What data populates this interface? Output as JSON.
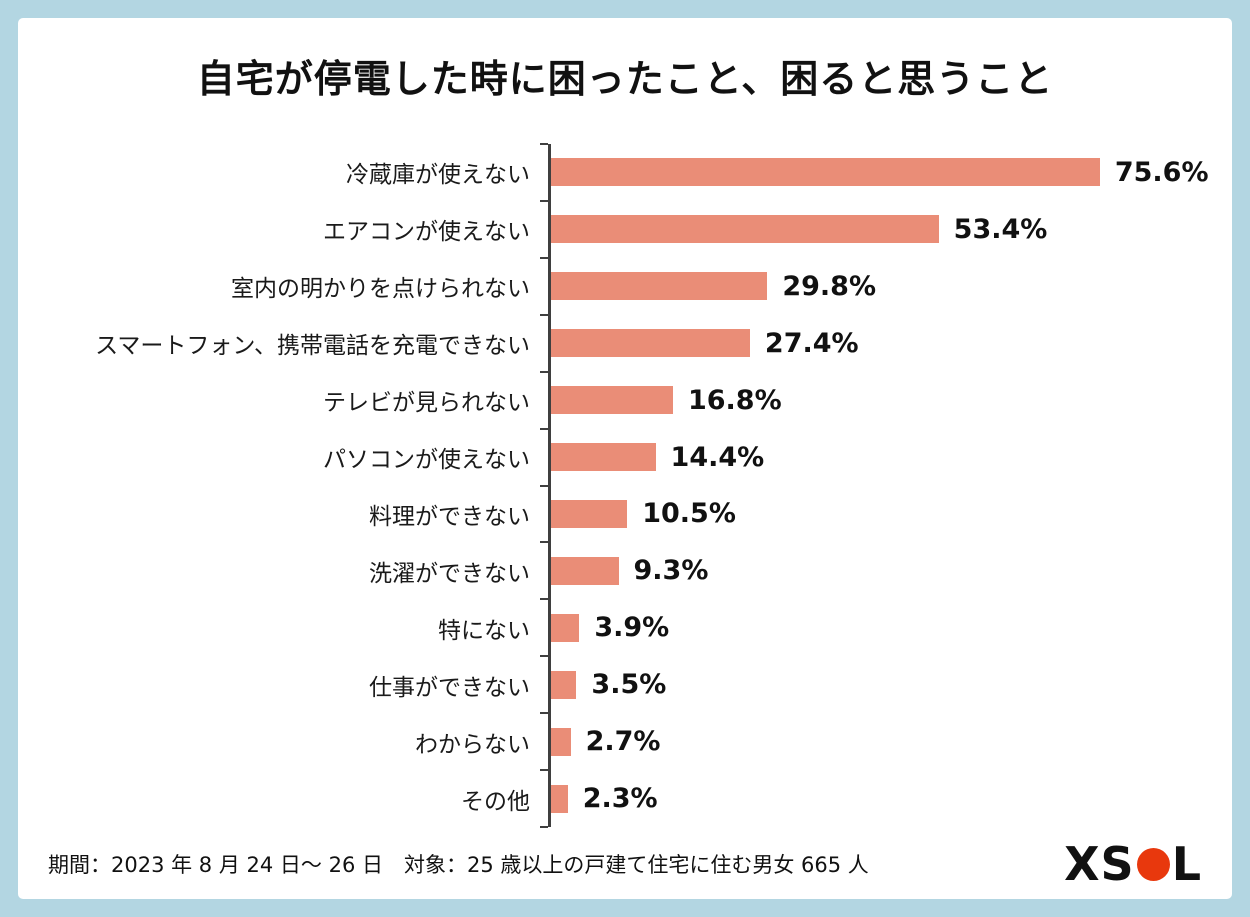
{
  "page": {
    "background_color": "#b3d6e2",
    "footer_note": "期間：2023 年 8 月 24 日～ 26 日　対象：25 歳以上の戸建て住宅に住む男女 665 人",
    "logo": {
      "before": "XS",
      "after": "L",
      "dot_color": "#e8380d"
    }
  },
  "chart_data": {
    "type": "bar",
    "orientation": "horizontal",
    "title": "自宅が停電した時に困ったこと、困ると思うこと",
    "categories": [
      "冷蔵庫が使えない",
      "エアコンが使えない",
      "室内の明かりを点けられない",
      "スマートフォン、携帯電話を充電できない",
      "テレビが見られない",
      "パソコンが使えない",
      "料理ができない",
      "洗濯ができない",
      "特にない",
      "仕事ができない",
      "わからない",
      "その他"
    ],
    "values": [
      75.6,
      53.4,
      29.8,
      27.4,
      16.8,
      14.4,
      10.5,
      9.3,
      3.9,
      3.5,
      2.7,
      2.3
    ],
    "value_labels": [
      "75.6%",
      "53.4%",
      "29.8%",
      "27.4%",
      "16.8%",
      "14.4%",
      "10.5%",
      "9.3%",
      "3.9%",
      "3.5%",
      "2.7%",
      "2.3%"
    ],
    "xlabel": "",
    "ylabel": "",
    "xlim": [
      0,
      80
    ],
    "grid": false,
    "legend": false,
    "bar_color": "#ea8d77"
  }
}
